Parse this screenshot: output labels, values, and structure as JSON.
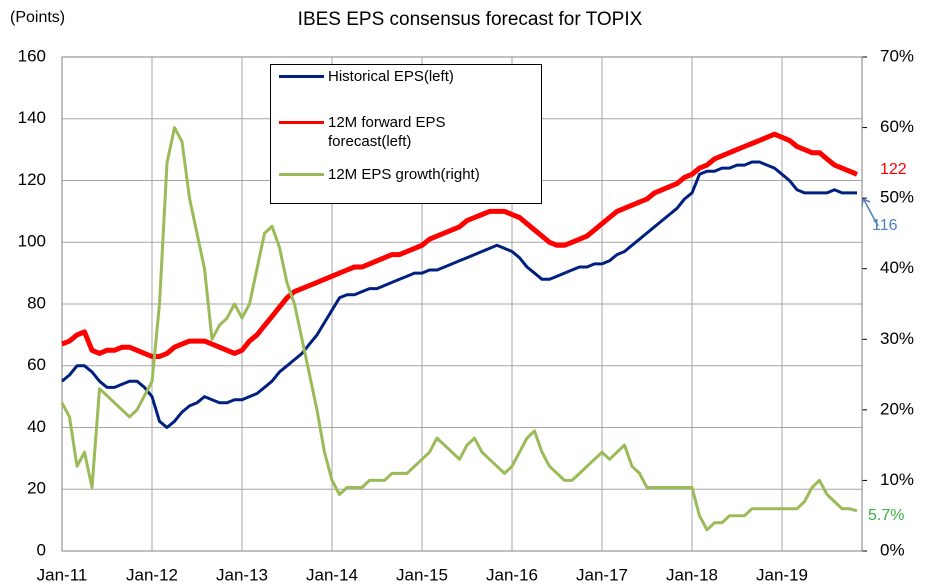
{
  "chart_data": {
    "type": "line",
    "title": "IBES EPS consensus forecast for TOPIX",
    "y_label": "(Points)",
    "categories": [
      "Jan-11",
      null,
      null,
      null,
      null,
      null,
      null,
      null,
      null,
      null,
      null,
      null,
      "Jan-12",
      null,
      null,
      null,
      null,
      null,
      null,
      null,
      null,
      null,
      null,
      null,
      "Jan-13",
      null,
      null,
      null,
      null,
      null,
      null,
      null,
      null,
      null,
      null,
      null,
      "Jan-14",
      null,
      null,
      null,
      null,
      null,
      null,
      null,
      null,
      null,
      null,
      null,
      "Jan-15",
      null,
      null,
      null,
      null,
      null,
      null,
      null,
      null,
      null,
      null,
      null,
      "Jan-16",
      null,
      null,
      null,
      null,
      null,
      null,
      null,
      null,
      null,
      null,
      null,
      "Jan-17",
      null,
      null,
      null,
      null,
      null,
      null,
      null,
      null,
      null,
      null,
      null,
      "Jan-18",
      null,
      null,
      null,
      null,
      null,
      null,
      null,
      null,
      null,
      null,
      null,
      "Jan-19",
      null,
      null,
      null,
      null,
      null,
      null,
      null,
      null,
      null,
      null
    ],
    "series": [
      {
        "name": "Historical EPS(left)",
        "color": "#002080",
        "axis": "y",
        "values": [
          55,
          57,
          60,
          60,
          58,
          55,
          53,
          53,
          54,
          55,
          55,
          53,
          50,
          42,
          40,
          42,
          45,
          47,
          48,
          50,
          49,
          48,
          48,
          49,
          49,
          50,
          51,
          53,
          55,
          58,
          60,
          62,
          64,
          67,
          70,
          74,
          78,
          82,
          83,
          83,
          84,
          85,
          85,
          86,
          87,
          88,
          89,
          90,
          90,
          91,
          91,
          92,
          93,
          94,
          95,
          96,
          97,
          98,
          99,
          98,
          97,
          95,
          92,
          90,
          88,
          88,
          89,
          90,
          91,
          92,
          92,
          93,
          93,
          94,
          96,
          97,
          99,
          101,
          103,
          105,
          107,
          109,
          111,
          114,
          116,
          122,
          123,
          123,
          124,
          124,
          125,
          125,
          126,
          126,
          125,
          124,
          122,
          120,
          117,
          116,
          116,
          116,
          116,
          117,
          116,
          116,
          116
        ]
      },
      {
        "name": "12M forward EPS forecast(left)",
        "color": "#ff0000",
        "axis": "y",
        "values": [
          67,
          68,
          70,
          71,
          65,
          64,
          65,
          65,
          66,
          66,
          65,
          64,
          63,
          63,
          64,
          66,
          67,
          68,
          68,
          68,
          67,
          66,
          65,
          64,
          65,
          68,
          70,
          73,
          76,
          79,
          82,
          84,
          85,
          86,
          87,
          88,
          89,
          90,
          91,
          92,
          92,
          93,
          94,
          95,
          96,
          96,
          97,
          98,
          99,
          101,
          102,
          103,
          104,
          105,
          107,
          108,
          109,
          110,
          110,
          110,
          109,
          108,
          106,
          104,
          102,
          100,
          99,
          99,
          100,
          101,
          102,
          104,
          106,
          108,
          110,
          111,
          112,
          113,
          114,
          116,
          117,
          118,
          119,
          121,
          122,
          124,
          125,
          127,
          128,
          129,
          130,
          131,
          132,
          133,
          134,
          135,
          134,
          133,
          131,
          130,
          129,
          129,
          127,
          125,
          124,
          123,
          122
        ]
      },
      {
        "name": "12M EPS growth(right)",
        "color": "#9bbb59",
        "axis": "y2",
        "values": [
          21,
          19,
          12,
          14,
          9,
          23,
          22,
          21,
          20,
          19,
          20,
          22,
          24,
          35,
          55,
          60,
          58,
          50,
          45,
          40,
          30,
          32,
          33,
          35,
          33,
          35,
          40,
          45,
          46,
          43,
          38,
          35,
          30,
          25,
          20,
          14,
          10,
          8,
          9,
          9,
          9,
          10,
          10,
          10,
          11,
          11,
          11,
          12,
          13,
          14,
          16,
          15,
          14,
          13,
          15,
          16,
          14,
          13,
          12,
          11,
          12,
          14,
          16,
          17,
          14,
          12,
          11,
          10,
          10,
          11,
          12,
          13,
          14,
          13,
          14,
          15,
          12,
          11,
          9,
          9,
          9,
          9,
          9,
          9,
          9,
          5,
          3,
          4,
          4,
          5,
          5,
          5,
          6,
          6,
          6,
          6,
          6,
          6,
          6,
          7,
          9,
          10,
          8,
          7,
          6,
          6,
          5.7
        ]
      }
    ],
    "ylim": [
      0,
      160
    ],
    "yticks": [
      0,
      20,
      40,
      60,
      80,
      100,
      120,
      140,
      160
    ],
    "y2lim": [
      0,
      70
    ],
    "y2ticks": [
      {
        "value": 0,
        "label": "0%"
      },
      {
        "value": 10,
        "label": "10%"
      },
      {
        "value": 20,
        "label": "20%"
      },
      {
        "value": 30,
        "label": "30%"
      },
      {
        "value": 40,
        "label": "40%"
      },
      {
        "value": 50,
        "label": "50%"
      },
      {
        "value": 60,
        "label": "60%"
      },
      {
        "value": 70,
        "label": "70%"
      }
    ],
    "grid": true,
    "annotations": [
      {
        "text": "122",
        "color": "#ff0000"
      },
      {
        "text": "116",
        "color": "#4f81bd"
      },
      {
        "text": "5.7%",
        "color": "#3cb043"
      }
    ]
  }
}
